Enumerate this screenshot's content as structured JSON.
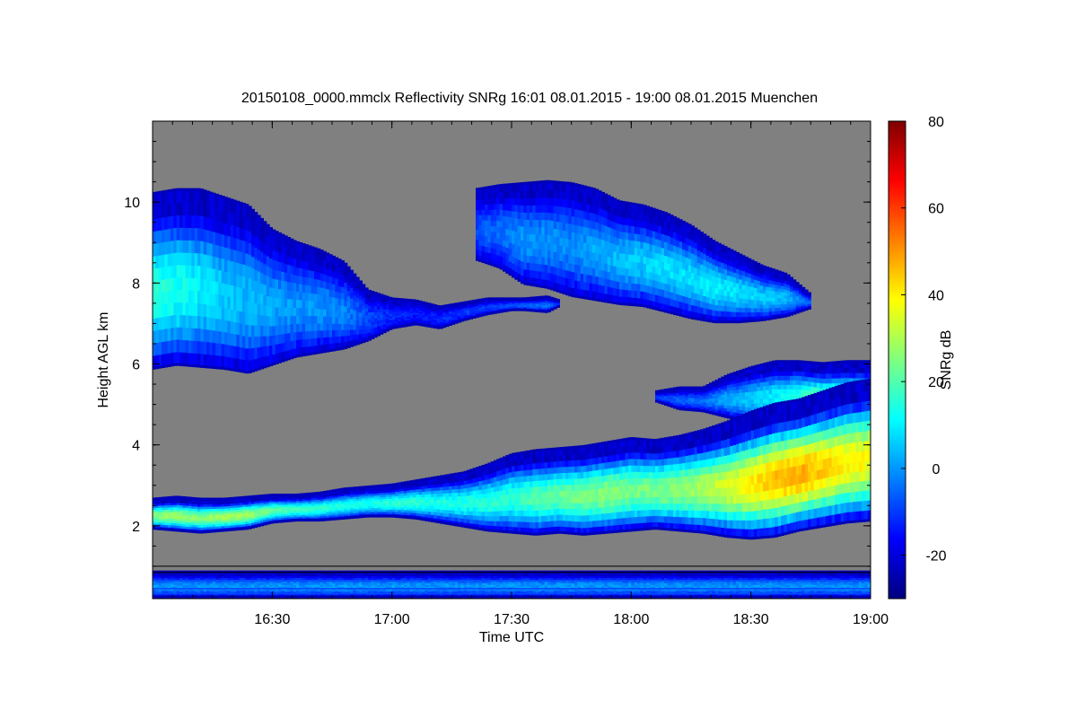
{
  "chart_data": {
    "type": "heatmap",
    "title": "20150108_0000.mmclx Reflectivity SNRg   16:01 08.01.2015 - 19:00 08.01.2015 Muenchen",
    "xlabel": "Time UTC",
    "ylabel": "Height AGL km",
    "xlim": [
      16.0,
      19.0
    ],
    "ylim": [
      0.2,
      12.0
    ],
    "x_ticks": [
      {
        "value": 16.5,
        "label": "16:30"
      },
      {
        "value": 17.0,
        "label": "17:00"
      },
      {
        "value": 17.5,
        "label": "17:30"
      },
      {
        "value": 18.0,
        "label": "18:00"
      },
      {
        "value": 18.5,
        "label": "18:30"
      },
      {
        "value": 19.0,
        "label": "19:00"
      }
    ],
    "y_ticks": [
      {
        "value": 2,
        "label": "2"
      },
      {
        "value": 4,
        "label": "4"
      },
      {
        "value": 6,
        "label": "6"
      },
      {
        "value": 8,
        "label": "8"
      },
      {
        "value": 10,
        "label": "10"
      }
    ],
    "colorbar": {
      "label": "SNRg dB",
      "range": [
        -30,
        80
      ],
      "ticks": [
        {
          "value": -20,
          "label": "-20"
        },
        {
          "value": 0,
          "label": "0"
        },
        {
          "value": 20,
          "label": "20"
        },
        {
          "value": 40,
          "label": "40"
        },
        {
          "value": 60,
          "label": "60"
        },
        {
          "value": 80,
          "label": "80"
        }
      ]
    },
    "background_color": "#808080",
    "layers": [
      {
        "name": "upper cloud, west part",
        "x": [
          16.0,
          16.1,
          16.2,
          16.3,
          16.4,
          16.5,
          16.6,
          16.7,
          16.8,
          16.9,
          17.0,
          17.1,
          17.2,
          17.3,
          17.4,
          17.5,
          17.55,
          17.65,
          17.7
        ],
        "top": [
          10.2,
          10.3,
          10.3,
          10.1,
          9.9,
          9.3,
          9.0,
          8.8,
          8.5,
          7.8,
          7.6,
          7.55,
          7.4,
          7.5,
          7.6,
          7.6,
          7.6,
          7.65,
          7.55
        ],
        "base": [
          5.9,
          6.0,
          5.95,
          5.9,
          5.8,
          6.0,
          6.2,
          6.3,
          6.4,
          6.6,
          6.9,
          7.0,
          6.9,
          7.1,
          7.25,
          7.35,
          7.35,
          7.3,
          7.45
        ],
        "peak_snr": [
          16,
          14,
          10,
          6,
          4,
          2,
          0,
          0,
          -2,
          -8,
          -12,
          -14,
          -12,
          -10,
          -10,
          -8,
          -6,
          -4,
          -12
        ]
      },
      {
        "name": "upper cloud, east part",
        "x": [
          17.35,
          17.45,
          17.55,
          17.65,
          17.75,
          17.85,
          17.95,
          18.05,
          18.15,
          18.25,
          18.35,
          18.45,
          18.55,
          18.65,
          18.75
        ],
        "top": [
          10.3,
          10.4,
          10.45,
          10.5,
          10.45,
          10.3,
          10.0,
          9.9,
          9.7,
          9.4,
          9.0,
          8.7,
          8.4,
          8.2,
          7.7
        ],
        "base": [
          8.6,
          8.4,
          8.0,
          7.9,
          7.7,
          7.6,
          7.5,
          7.45,
          7.3,
          7.15,
          7.05,
          7.05,
          7.1,
          7.2,
          7.4
        ],
        "peak_snr": [
          -8,
          -4,
          0,
          0,
          -2,
          2,
          4,
          6,
          8,
          8,
          10,
          8,
          6,
          4,
          -8
        ]
      },
      {
        "name": "upper deck, late",
        "x": [
          18.1,
          18.2,
          18.3,
          18.4,
          18.5,
          18.6,
          18.7,
          18.8,
          18.9,
          19.0
        ],
        "top": [
          5.3,
          5.4,
          5.4,
          5.7,
          5.9,
          6.05,
          6.05,
          6.0,
          6.05,
          6.05
        ],
        "base": [
          5.1,
          4.9,
          4.85,
          4.7,
          4.55,
          4.5,
          4.5,
          4.35,
          4.25,
          4.2
        ],
        "peak_snr": [
          -10,
          -6,
          -4,
          2,
          6,
          10,
          16,
          26,
          30,
          28
        ]
      },
      {
        "name": "lower cloud layer",
        "x": [
          16.0,
          16.1,
          16.2,
          16.3,
          16.4,
          16.5,
          16.6,
          16.7,
          16.8,
          16.9,
          17.0,
          17.1,
          17.2,
          17.3,
          17.4,
          17.5,
          17.6,
          17.7,
          17.8,
          17.9,
          18.0,
          18.1,
          18.2,
          18.3,
          18.4,
          18.5,
          18.6,
          18.7,
          18.8,
          18.9,
          19.0
        ],
        "top": [
          2.65,
          2.7,
          2.65,
          2.65,
          2.7,
          2.75,
          2.75,
          2.8,
          2.9,
          2.95,
          3.0,
          3.1,
          3.2,
          3.3,
          3.5,
          3.75,
          3.85,
          3.9,
          3.95,
          4.05,
          4.15,
          4.1,
          4.2,
          4.35,
          4.55,
          4.8,
          5.0,
          5.1,
          5.3,
          5.5,
          5.6
        ],
        "base": [
          1.95,
          1.9,
          1.85,
          1.9,
          1.95,
          2.1,
          2.15,
          2.15,
          2.2,
          2.25,
          2.25,
          2.2,
          2.1,
          2.0,
          1.9,
          1.85,
          1.8,
          1.85,
          1.8,
          1.85,
          1.9,
          1.95,
          1.9,
          1.85,
          1.75,
          1.7,
          1.75,
          1.9,
          2.0,
          2.1,
          2.15
        ],
        "peak_snr": [
          26,
          28,
          26,
          30,
          28,
          22,
          18,
          16,
          14,
          14,
          16,
          16,
          14,
          14,
          16,
          16,
          20,
          22,
          24,
          26,
          24,
          24,
          26,
          30,
          34,
          40,
          46,
          48,
          44,
          40,
          38
        ]
      },
      {
        "name": "near-surface clutter",
        "x": [
          16.0,
          19.0
        ],
        "top": [
          0.85,
          0.85
        ],
        "base": [
          0.25,
          0.25
        ],
        "peak_snr": [
          0,
          0
        ]
      }
    ],
    "colormap": {
      "name": "jet",
      "stops": [
        "#00007f",
        "#0000ff",
        "#007fff",
        "#00ffff",
        "#7fff7f",
        "#ffff00",
        "#ff7f00",
        "#ff0000",
        "#7f0000"
      ]
    }
  }
}
